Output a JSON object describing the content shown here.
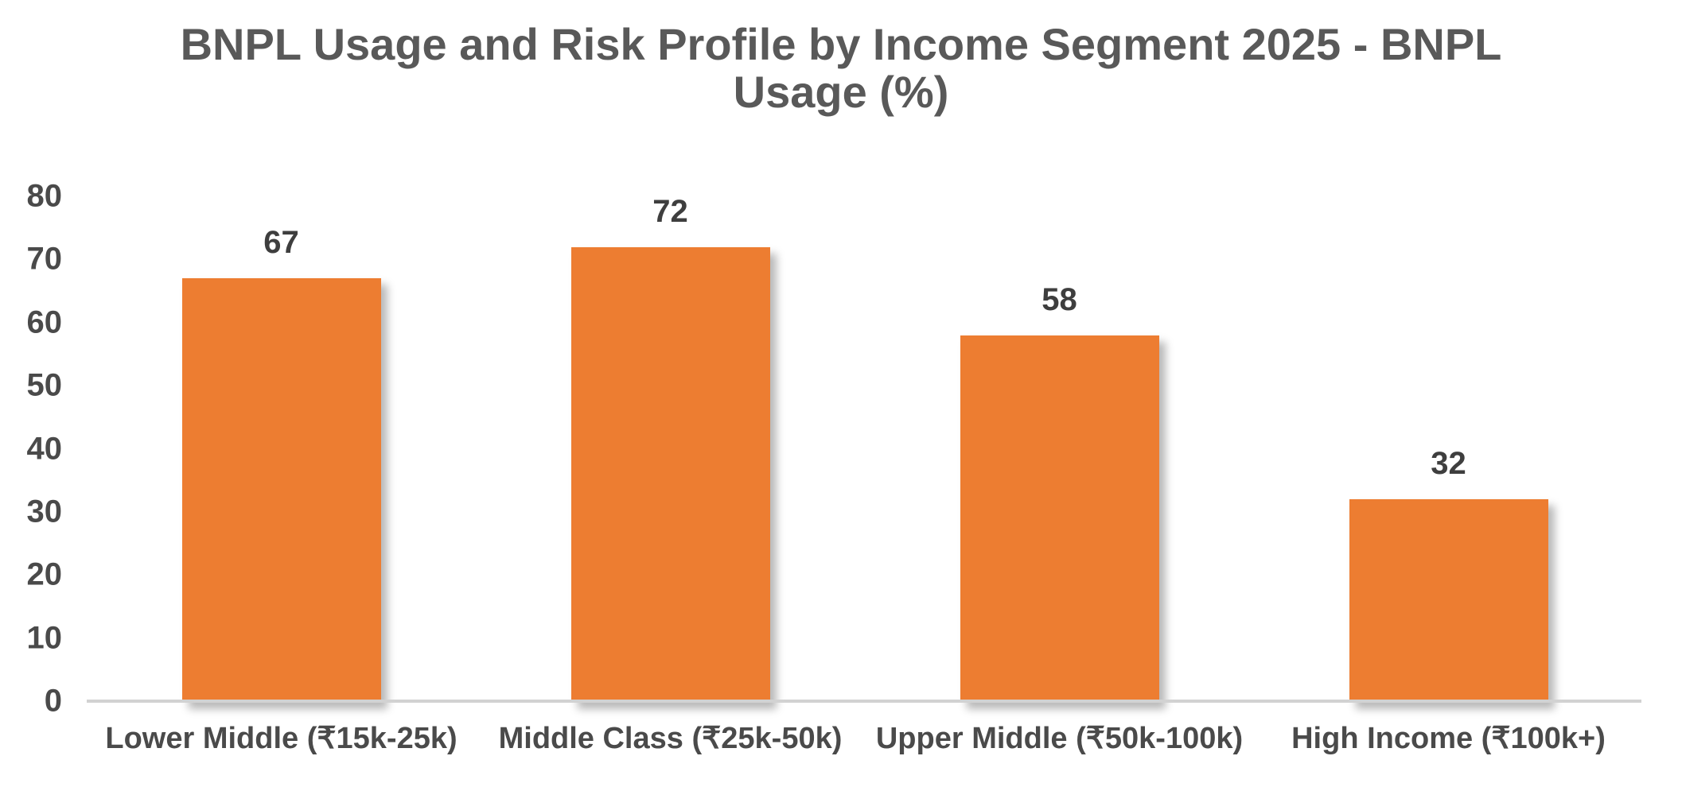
{
  "chart_data": {
    "type": "bar",
    "title": "BNPL Usage and Risk Profile by Income Segment 2025 - BNPL Usage (%)",
    "title_display_lines": [
      "BNPL Usage and Risk Profile by Income Segment 2025 - BNPL",
      "Usage (%)"
    ],
    "categories": [
      "Lower Middle (₹15k-25k)",
      "Middle Class (₹25k-50k)",
      "Upper Middle (₹50k-100k)",
      "High Income (₹100k+)"
    ],
    "values": [
      67,
      72,
      58,
      32
    ],
    "data_labels": [
      "67",
      "72",
      "58",
      "32"
    ],
    "ytick_labels": [
      "0",
      "10",
      "20",
      "30",
      "40",
      "50",
      "60",
      "70",
      "80"
    ],
    "yticks": [
      0,
      10,
      20,
      30,
      40,
      50,
      60,
      70,
      80
    ],
    "ylim": [
      0,
      80
    ],
    "xlabel": "",
    "ylabel": "",
    "grid": false,
    "legend": false,
    "colors": {
      "bar": "#ED7D31",
      "title_text": "#595959",
      "axis_text": "#4A4A4A",
      "data_label_text": "#3E3E3E",
      "axis_line": "#D2D2D2",
      "background": "#FFFFFF"
    }
  }
}
